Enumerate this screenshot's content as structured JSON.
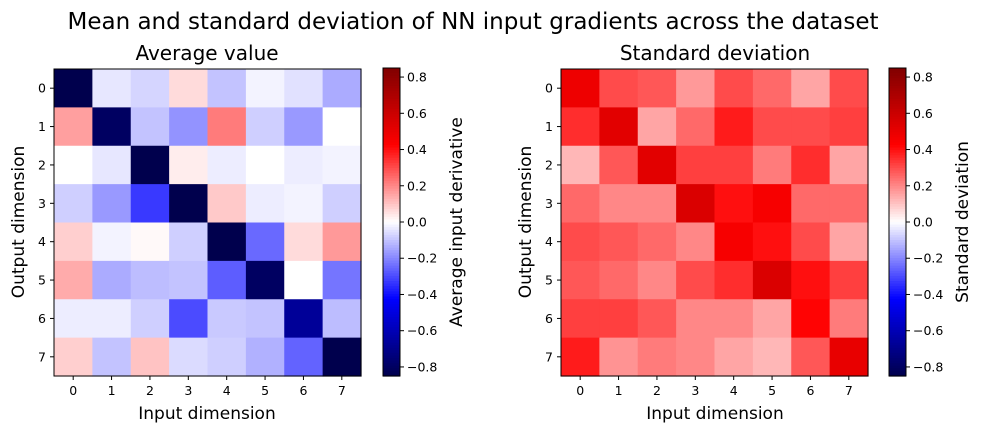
{
  "figure": {
    "suptitle": "Mean and standard deviation of NN input gradients across the dataset"
  },
  "chart_data": [
    {
      "type": "heatmap",
      "title": "Average value",
      "xlabel": "Input dimension",
      "ylabel": "Output dimension",
      "x_ticks": [
        "0",
        "1",
        "2",
        "3",
        "4",
        "5",
        "6",
        "7"
      ],
      "y_ticks": [
        "0",
        "1",
        "2",
        "3",
        "4",
        "5",
        "6",
        "7"
      ],
      "colormap": "seismic",
      "vmin": -0.85,
      "vmax": 0.85,
      "colorbar_label": "Average input derivative",
      "colorbar_ticks": [
        "0.8",
        "0.6",
        "0.4",
        "0.2",
        "0.0",
        "−0.2",
        "−0.4",
        "−0.6",
        "−0.8"
      ],
      "colorbar_tick_values": [
        0.8,
        0.6,
        0.4,
        0.2,
        0.0,
        -0.2,
        -0.4,
        -0.6,
        -0.8
      ],
      "values": [
        [
          -0.85,
          -0.04,
          -0.07,
          0.06,
          -0.1,
          -0.02,
          -0.05,
          -0.14
        ],
        [
          0.16,
          -0.8,
          -0.1,
          -0.18,
          0.22,
          -0.08,
          -0.17,
          0.0
        ],
        [
          0.0,
          -0.04,
          -0.85,
          0.03,
          -0.03,
          0.0,
          -0.03,
          -0.02
        ],
        [
          -0.08,
          -0.17,
          -0.33,
          -0.85,
          0.09,
          -0.03,
          -0.02,
          -0.08
        ],
        [
          0.08,
          -0.02,
          0.01,
          -0.08,
          -0.85,
          -0.25,
          0.06,
          0.17
        ],
        [
          0.14,
          -0.14,
          -0.11,
          -0.1,
          -0.27,
          -0.8,
          0.0,
          -0.23
        ],
        [
          -0.03,
          -0.03,
          -0.08,
          -0.3,
          -0.09,
          -0.1,
          -0.67,
          -0.11
        ],
        [
          0.08,
          -0.1,
          0.1,
          -0.06,
          -0.08,
          -0.13,
          -0.26,
          -0.85
        ]
      ]
    },
    {
      "type": "heatmap",
      "title": "Standard deviation",
      "xlabel": "Input dimension",
      "ylabel": "Output dimension",
      "x_ticks": [
        "0",
        "1",
        "2",
        "3",
        "4",
        "5",
        "6",
        "7"
      ],
      "y_ticks": [
        "0",
        "1",
        "2",
        "3",
        "4",
        "5",
        "6",
        "7"
      ],
      "colormap": "seismic",
      "vmin": -0.85,
      "vmax": 0.85,
      "colorbar_label": "Standard deviation",
      "colorbar_ticks": [
        "0.8",
        "0.6",
        "0.4",
        "0.2",
        "0.0",
        "−0.2",
        "−0.4",
        "−0.6",
        "−0.8"
      ],
      "colorbar_tick_values": [
        0.8,
        0.6,
        0.4,
        0.2,
        0.0,
        -0.2,
        -0.4,
        -0.6,
        -0.8
      ],
      "values": [
        [
          0.48,
          0.3,
          0.28,
          0.17,
          0.3,
          0.25,
          0.15,
          0.3
        ],
        [
          0.35,
          0.52,
          0.15,
          0.25,
          0.38,
          0.3,
          0.3,
          0.32
        ],
        [
          0.12,
          0.28,
          0.52,
          0.32,
          0.32,
          0.22,
          0.35,
          0.15
        ],
        [
          0.25,
          0.2,
          0.2,
          0.55,
          0.4,
          0.45,
          0.25,
          0.25
        ],
        [
          0.3,
          0.28,
          0.25,
          0.2,
          0.45,
          0.4,
          0.3,
          0.15
        ],
        [
          0.28,
          0.25,
          0.2,
          0.3,
          0.35,
          0.55,
          0.4,
          0.32
        ],
        [
          0.32,
          0.32,
          0.28,
          0.2,
          0.2,
          0.15,
          0.42,
          0.22
        ],
        [
          0.38,
          0.18,
          0.22,
          0.2,
          0.15,
          0.12,
          0.28,
          0.5
        ]
      ]
    }
  ]
}
